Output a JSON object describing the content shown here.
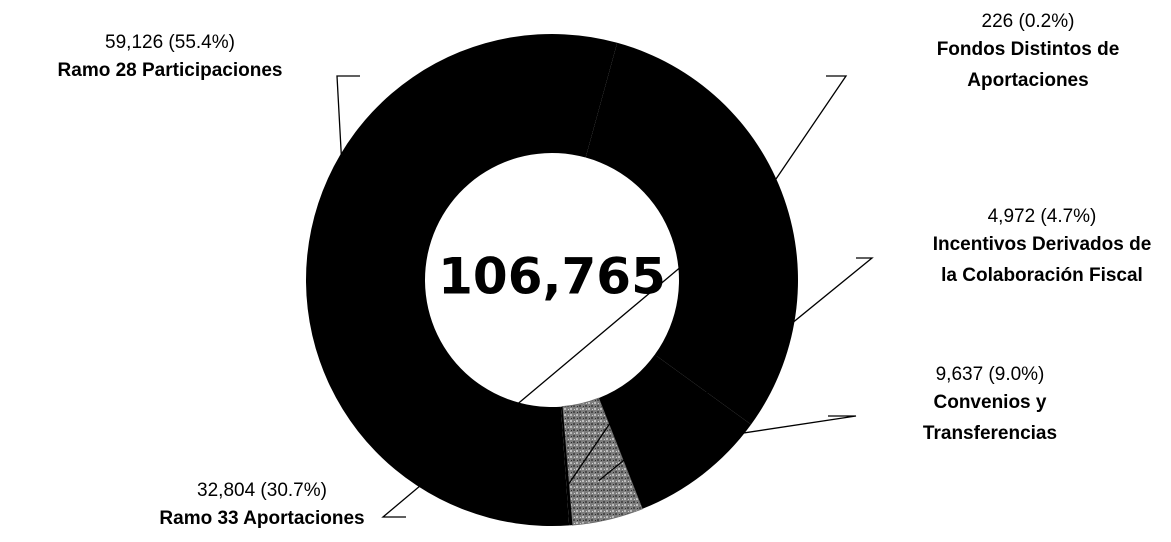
{
  "chart_data": {
    "type": "pie",
    "center_label": "106,765",
    "slices": [
      {
        "name_lines": [
          "Ramo 28 Participaciones"
        ],
        "value": 59126,
        "value_label": "59,126 (55.4%)",
        "color": "#000000"
      },
      {
        "name_lines": [
          "Ramo 33 Aportaciones"
        ],
        "value": 32804,
        "value_label": "32,804 (30.7%)",
        "color": "#000000"
      },
      {
        "name_lines": [
          "Convenios y",
          "Transferencias"
        ],
        "value": 9637,
        "value_label": "9,637 (9.0%)",
        "color": "#000000"
      },
      {
        "name_lines": [
          "Incentivos Derivados de",
          "la Colaboración Fiscal"
        ],
        "value": 4972,
        "value_label": "4,972 (4.7%)",
        "color": "#8a8a8a"
      },
      {
        "name_lines": [
          "Fondos Distintos de",
          "Aportaciones"
        ],
        "value": 226,
        "value_label": "226 (0.2%)",
        "color": "#000000"
      }
    ]
  }
}
